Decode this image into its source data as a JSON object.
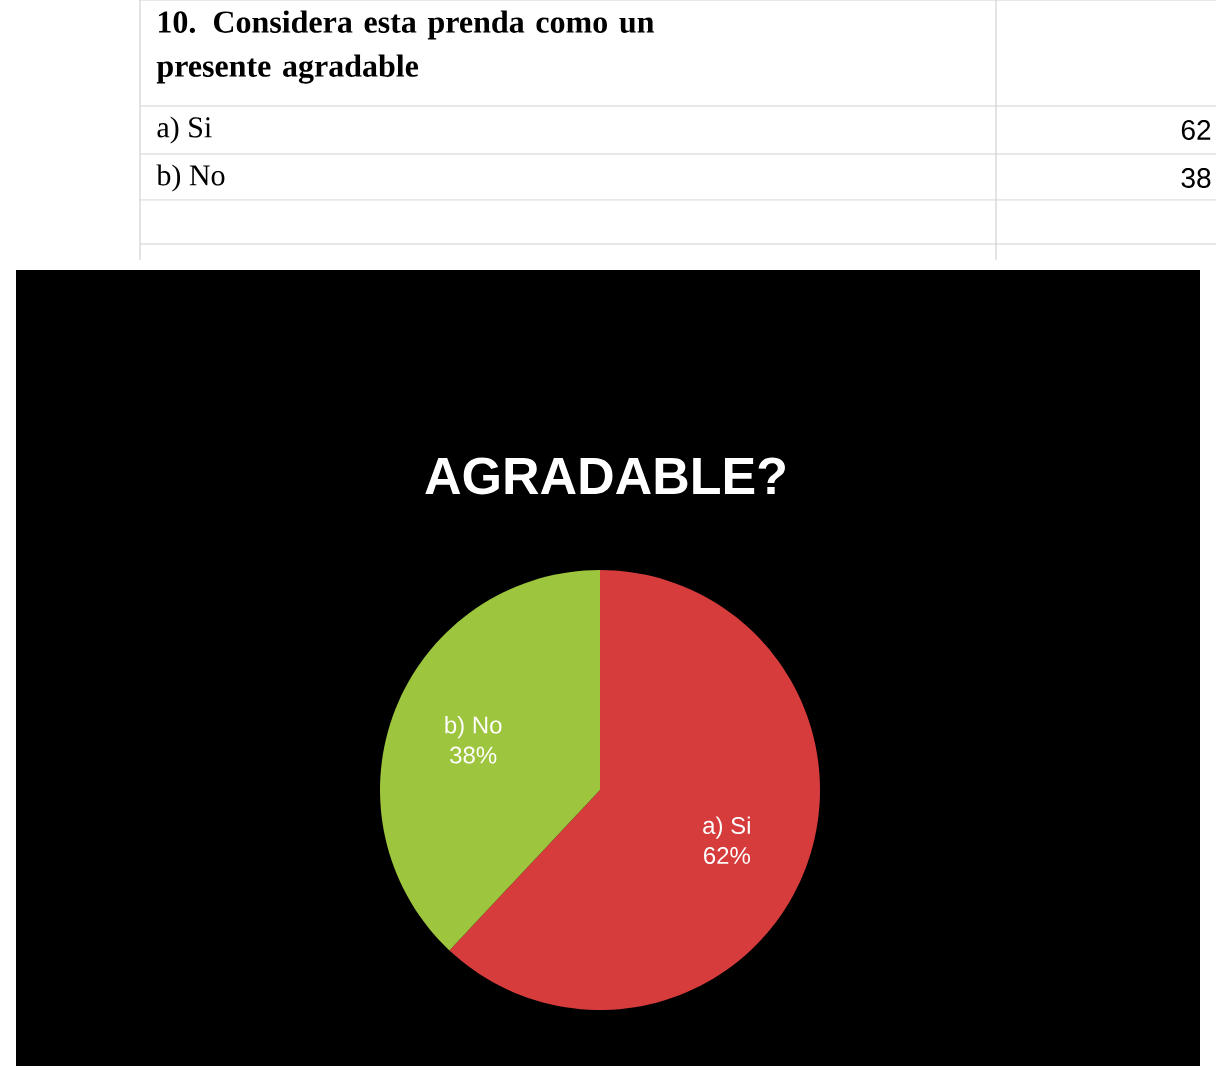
{
  "chart_data": {
    "type": "pie",
    "title": "AGRADABLE?",
    "annotations": [
      "10.  Considera esta prenda como un presente agradable",
      "62",
      "38"
    ],
    "categories": [
      "a)  Si",
      "b)  No"
    ],
    "values": [
      62,
      38
    ],
    "value_labels": [
      "62%",
      "38%"
    ],
    "colors": [
      "#d63c3c",
      "#9ec53e"
    ],
    "legend": false
  }
}
